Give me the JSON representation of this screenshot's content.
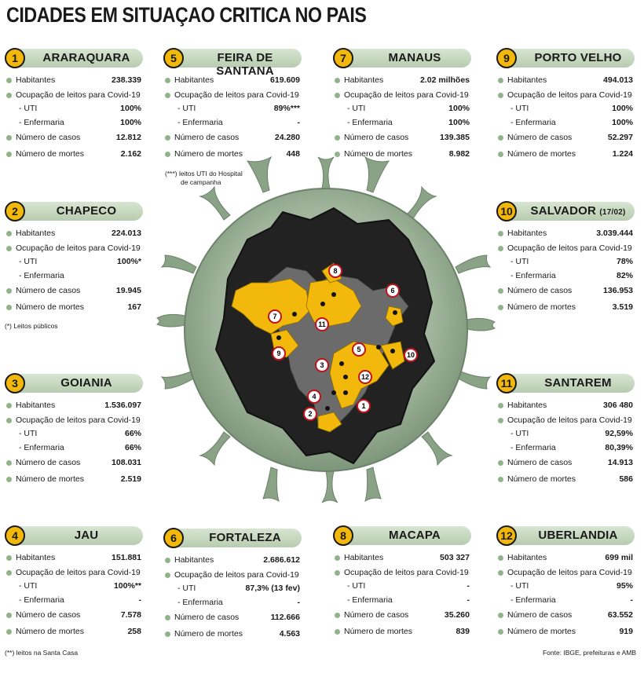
{
  "title": "CIDADES EM SITUAÇAO CRITICA NO PAIS",
  "labels": {
    "habitantes": "Habitantes",
    "ocupacao": "Ocupação de leitos para Covid-19",
    "uti": "- UTI",
    "enfermaria": "- Enfermaria",
    "casos": "Número de casos",
    "mortes": "Número de mortes"
  },
  "cities": [
    {
      "num": "1",
      "name": "ARARAQUARA",
      "habitantes": "238.339",
      "uti": "100%",
      "enfermaria": "100%",
      "casos": "12.812",
      "mortes": "2.162"
    },
    {
      "num": "2",
      "name": "CHAPECO",
      "habitantes": "224.013",
      "uti": "100%*",
      "enfermaria": "",
      "casos": "19.945",
      "mortes": "167"
    },
    {
      "num": "3",
      "name": "GOIANIA",
      "habitantes": "1.536.097",
      "uti": "66%",
      "enfermaria": "66%",
      "casos": "108.031",
      "mortes": "2.519"
    },
    {
      "num": "4",
      "name": "JAU",
      "habitantes": "151.881",
      "uti": "100%**",
      "enfermaria": "-",
      "casos": "7.578",
      "mortes": "258"
    },
    {
      "num": "5",
      "name": "FEIRA DE SANTANA",
      "habitantes": "619.609",
      "uti": "89%***",
      "enfermaria": "-",
      "casos": "24.280",
      "mortes": "448"
    },
    {
      "num": "6",
      "name": "FORTALEZA",
      "habitantes": "2.686.612",
      "uti": "87,3% (13 fev)",
      "enfermaria": "-",
      "casos": "112.666",
      "mortes": "4.563"
    },
    {
      "num": "7",
      "name": "MANAUS",
      "habitantes": "2.02 milhões",
      "uti": "100%",
      "enfermaria": "100%",
      "casos": "139.385",
      "mortes": "8.982"
    },
    {
      "num": "8",
      "name": "MACAPA",
      "habitantes": "503 327",
      "uti": "-",
      "enfermaria": "-",
      "casos": "35.260",
      "mortes": "839"
    },
    {
      "num": "9",
      "name": "PORTO VELHO",
      "habitantes": "494.013",
      "uti": "100%",
      "enfermaria": "100%",
      "casos": "52.297",
      "mortes": "1.224"
    },
    {
      "num": "10",
      "name": "SALVADOR",
      "name_suffix": "(17/02)",
      "habitantes": "3.039.444",
      "uti": "78%",
      "enfermaria": "82%",
      "casos": "136.953",
      "mortes": "3.519"
    },
    {
      "num": "11",
      "name": "SANTAREM",
      "habitantes": "306 480",
      "uti": "92,59%",
      "enfermaria": "80,39%",
      "casos": "14.913",
      "mortes": "586"
    },
    {
      "num": "12",
      "name": "UBERLANDIA",
      "habitantes": "699 mil",
      "uti": "95%",
      "enfermaria": "-",
      "casos": "63.552",
      "mortes": "919"
    }
  ],
  "notes": {
    "feira_line1": "(***) leitos UTI do Hospital",
    "feira_line2": "de campanha",
    "chapeco": "(*) Leitos públicos",
    "jau": "(**) leitos na Santa Casa"
  },
  "source": "Fonte: IBGE, prefeituras e AMB",
  "map_pins": [
    "1",
    "2",
    "3",
    "4",
    "5",
    "6",
    "7",
    "8",
    "9",
    "10",
    "11",
    "12"
  ],
  "colors": {
    "accent": "#f2b80b",
    "pill": "#c5d8bf",
    "bullet": "#8fb487",
    "virus": "#8aa286",
    "dark": "#222222"
  }
}
